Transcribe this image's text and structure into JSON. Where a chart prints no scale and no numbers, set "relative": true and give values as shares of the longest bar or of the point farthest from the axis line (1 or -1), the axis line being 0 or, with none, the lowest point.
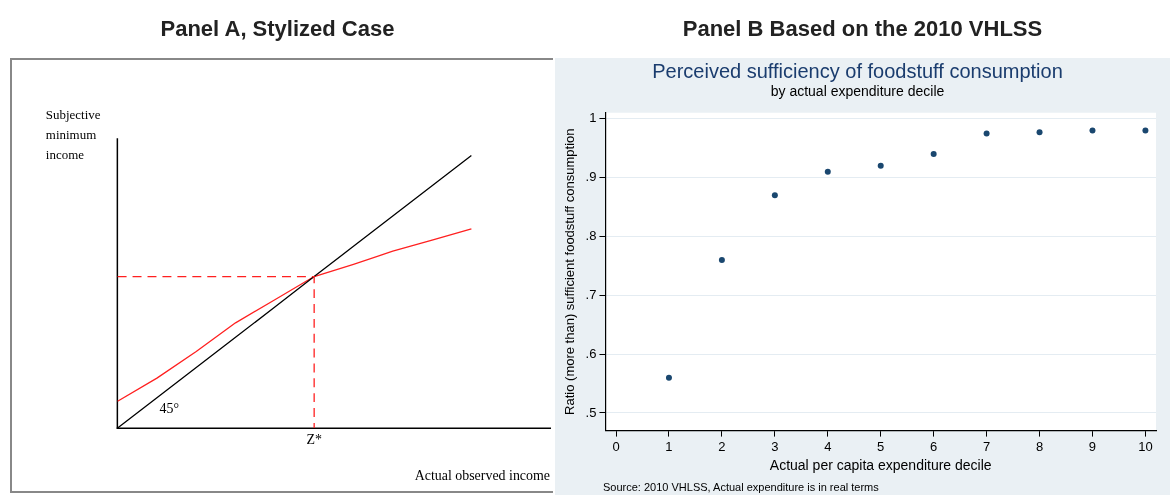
{
  "chart_data": [
    {
      "type": "line",
      "title": "Panel A, Stylized Case",
      "xlabel": "Actual observed income",
      "ylabel": "Subjective minimum income",
      "relative": true,
      "grid": false,
      "legend": false,
      "marker": "none",
      "categories": [
        null,
        null,
        null,
        null,
        null,
        null,
        null,
        null,
        null,
        null,
        null,
        null
      ],
      "series": [
        {
          "color": "#000000",
          "values": [
            0,
            0.111,
            0.222,
            0.333,
            0.444,
            0.556,
            0.667,
            0.778,
            0.889,
            1,
            null,
            null
          ]
        },
        {
          "color": "#ff2020",
          "values": [
            0.098,
            0.183,
            0.281,
            0.386,
            0.471,
            0.556,
            0.601,
            0.649,
            0.69,
            0.731,
            null,
            null
          ]
        }
      ],
      "ref_lines": [
        {
          "axis": "y",
          "value": 0.556,
          "label": "Z*",
          "color": "#ff2020",
          "line_style": "dashed"
        }
      ],
      "annotations": [
        "45°"
      ]
    },
    {
      "type": "scatter",
      "title": "Panel B Based on the 2010 VHLSS",
      "subtitle": "Perceived sufficiency of foodstuff consumption",
      "xlabel": "Actual per capita expenditure decile",
      "ylabel": "Ratio (more than) sufficient foodstuff consumption",
      "x": [
        1,
        2,
        3,
        4,
        5,
        6,
        7,
        8,
        9,
        10
      ],
      "values": [
        0.56,
        0.76,
        0.87,
        0.91,
        0.92,
        0.94,
        0.975,
        0.977,
        0.98,
        0.98
      ],
      "color": "#1a476f",
      "marker": "circle",
      "legend": false,
      "grid": "y",
      "xlim": [
        -0.2,
        10.2
      ],
      "xticks": [
        0,
        1,
        2,
        3,
        4,
        5,
        6,
        7,
        8,
        9,
        10
      ],
      "ylim": [
        0.47,
        1.01
      ],
      "yticks": [
        {
          "value": 0.5,
          "label": ".5"
        },
        {
          "value": 0.6,
          "label": ".6"
        },
        {
          "value": 0.7,
          "label": ".7"
        },
        {
          "value": 0.8,
          "label": ".8"
        },
        {
          "value": 0.9,
          "label": ".9"
        },
        {
          "value": 1,
          "label": "1"
        }
      ],
      "annotations": [
        "by actual expenditure decile",
        "Source: 2010 VHLSS, Actual expenditure is in real terms"
      ]
    }
  ]
}
